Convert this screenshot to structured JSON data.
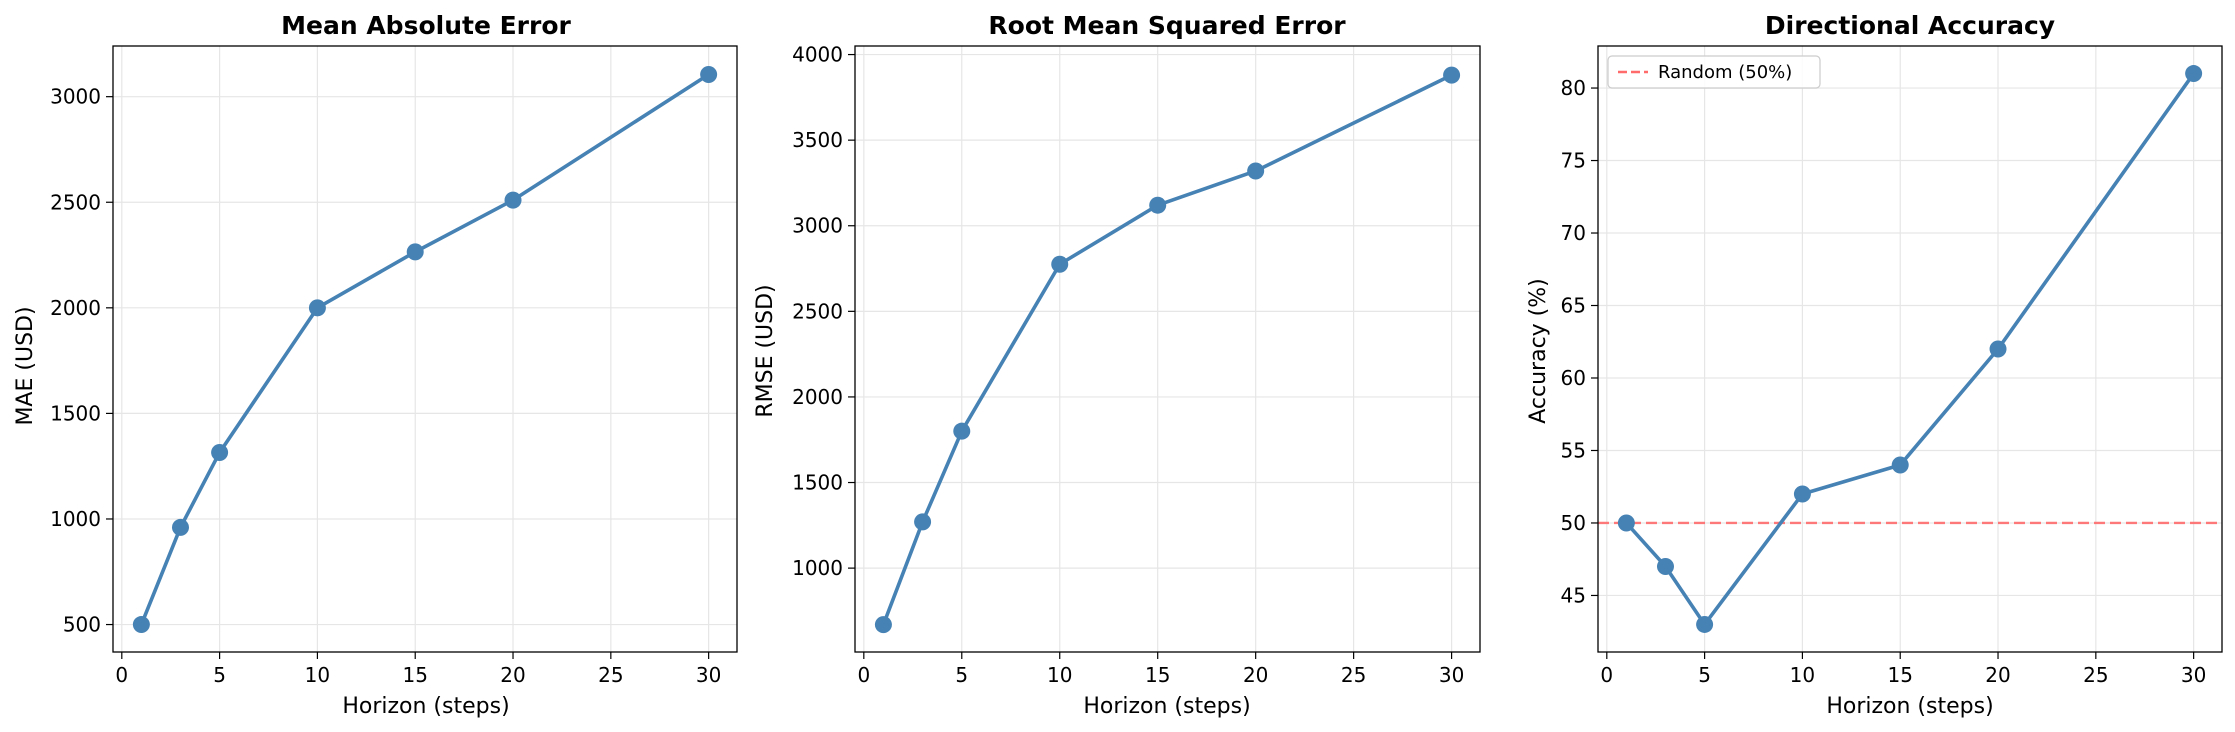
{
  "chart_data": [
    {
      "type": "line",
      "title": "Mean Absolute Error",
      "xlabel": "Horizon (steps)",
      "ylabel": "MAE (USD)",
      "xlim": [
        -0.45,
        31.45
      ],
      "ylim": [
        370,
        3240
      ],
      "xticks": [
        0,
        5,
        10,
        15,
        20,
        25,
        30
      ],
      "yticks": [
        500,
        1000,
        1500,
        2000,
        2500,
        3000
      ],
      "grid": true,
      "color": "#4682b4",
      "series": [
        {
          "x": [
            1,
            3,
            5,
            10,
            15,
            20,
            30
          ],
          "y": [
            500,
            960,
            1315,
            2000,
            2265,
            2510,
            3105
          ]
        }
      ]
    },
    {
      "type": "line",
      "title": "Root Mean Squared Error",
      "xlabel": "Horizon (steps)",
      "ylabel": "RMSE (USD)",
      "xlim": [
        -0.45,
        31.45
      ],
      "ylim": [
        510,
        4050
      ],
      "xticks": [
        0,
        5,
        10,
        15,
        20,
        25,
        30
      ],
      "yticks": [
        1000,
        1500,
        2000,
        2500,
        3000,
        3500,
        4000
      ],
      "grid": true,
      "color": "#4682b4",
      "series": [
        {
          "x": [
            1,
            3,
            5,
            10,
            15,
            20,
            30
          ],
          "y": [
            670,
            1270,
            1800,
            2775,
            3120,
            3320,
            3880
          ]
        }
      ]
    },
    {
      "type": "line",
      "title": "Directional Accuracy",
      "xlabel": "Horizon (steps)",
      "ylabel": "Accuracy (%)",
      "xlim": [
        -0.45,
        31.45
      ],
      "ylim": [
        41.1,
        82.9
      ],
      "xticks": [
        0,
        5,
        10,
        15,
        20,
        25,
        30
      ],
      "yticks": [
        45,
        50,
        55,
        60,
        65,
        70,
        75,
        80
      ],
      "grid": true,
      "color": "#4682b4",
      "legend": "top-left",
      "reference_line": {
        "y": 50,
        "name": "Random (50%)",
        "color": "#ff6b6b",
        "style": "dashed"
      },
      "series": [
        {
          "x": [
            1,
            3,
            5,
            10,
            15,
            20,
            30
          ],
          "y": [
            50,
            47,
            43,
            52,
            54,
            62,
            81
          ]
        }
      ]
    }
  ]
}
